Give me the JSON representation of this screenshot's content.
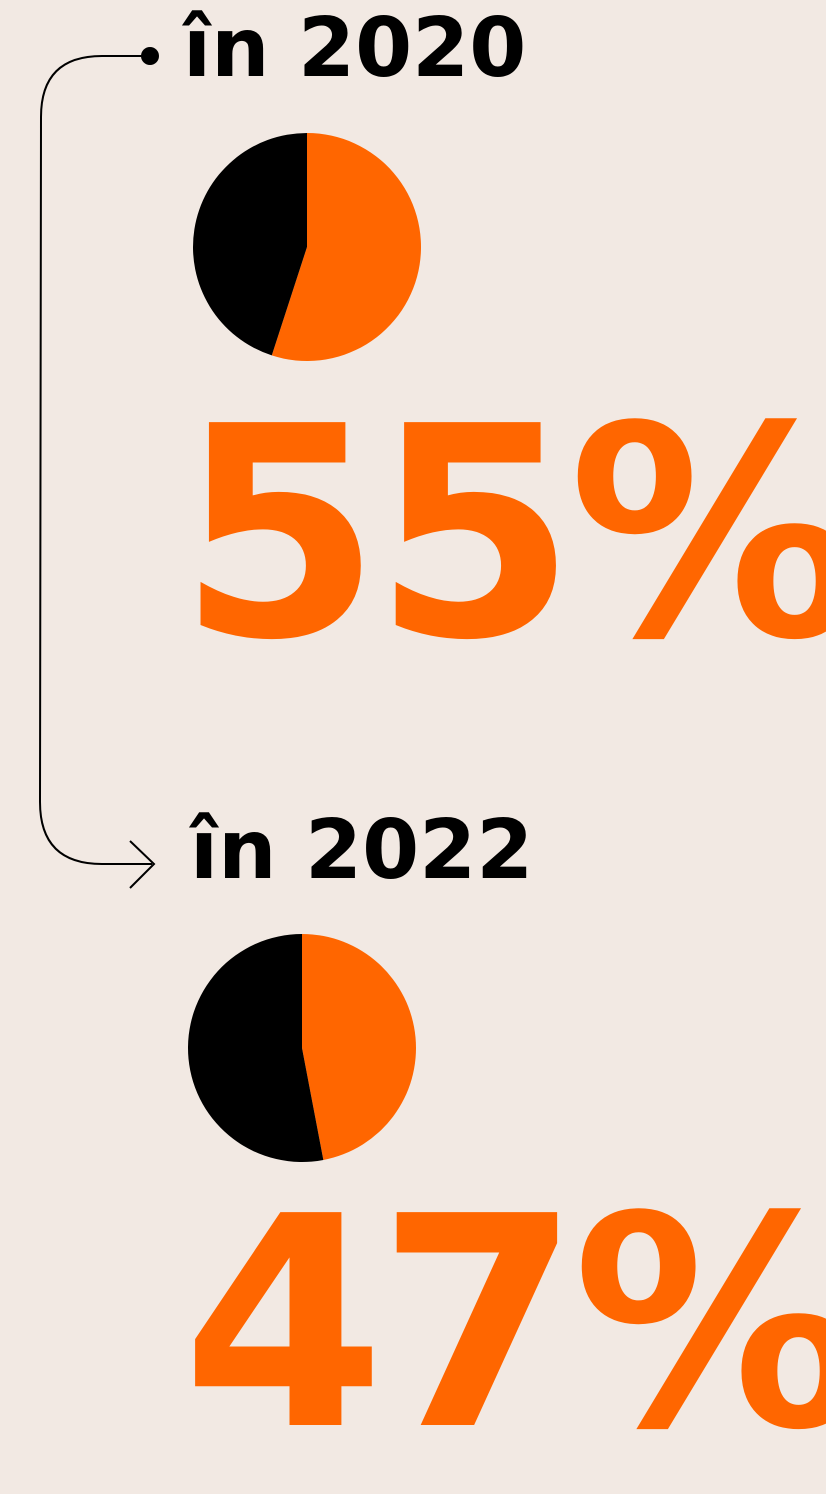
{
  "colors": {
    "background": "#f2e9e3",
    "accent": "#ff6600",
    "dark": "#000000"
  },
  "chart_data": [
    {
      "type": "pie",
      "title": "în 2020",
      "slices": [
        {
          "value": 55,
          "color": "#ff6600"
        },
        {
          "value": 45,
          "color": "#000000"
        }
      ],
      "data_label": "55%"
    },
    {
      "type": "pie",
      "title": "în 2022",
      "slices": [
        {
          "value": 47,
          "color": "#ff6600"
        },
        {
          "value": 53,
          "color": "#000000"
        }
      ],
      "data_label": "47%"
    }
  ],
  "connector": {
    "start_icon": "dot-icon",
    "end_icon": "arrow-right-icon"
  }
}
